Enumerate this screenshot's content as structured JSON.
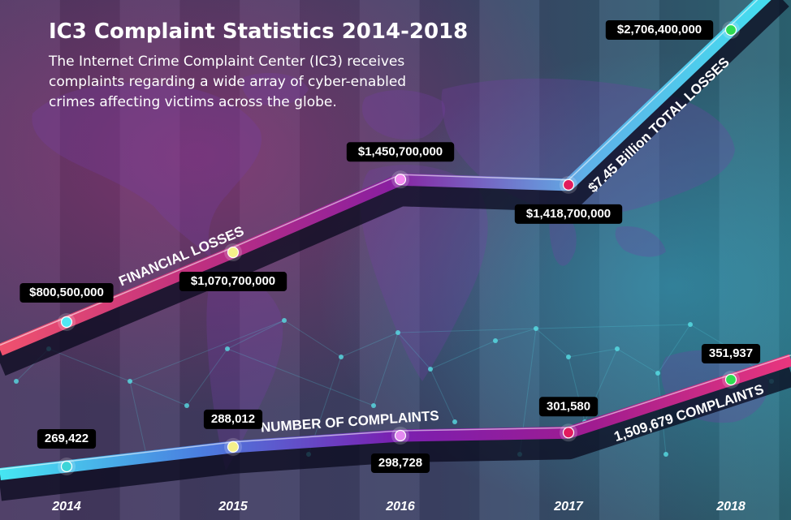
{
  "title": "IC3 Complaint Statistics 2014-2018",
  "subtitle": "The Internet Crime Complaint Center (IC3) receives complaints regarding a wide array of cyber-enabled crimes affecting victims across the globe.",
  "chart_data": {
    "type": "line",
    "categories": [
      "2014",
      "2015",
      "2016",
      "2017",
      "2018"
    ],
    "series": [
      {
        "name": "FINANCIAL LOSSES",
        "values": [
          800500000,
          1070700000,
          1450700000,
          1418700000,
          2706400000
        ],
        "labels": [
          "$800,500,000",
          "$1,070,700,000",
          "$1,450,700,000",
          "$1,418,700,000",
          "$2,706,400,000"
        ],
        "total": "$7.45 Billion TOTAL LOSSES",
        "gradient": [
          "#f0516e",
          "#c0307f",
          "#8a1fa0",
          "#5fb0e8",
          "#42e0ef"
        ],
        "dots": [
          "#4fe7f3",
          "#f4f08a",
          "#f48af0",
          "#e21c5e",
          "#2fdc52"
        ]
      },
      {
        "name": "NUMBER OF COMPLAINTS",
        "values": [
          269422,
          288012,
          298728,
          301580,
          351937
        ],
        "labels": [
          "269,422",
          "288,012",
          "298,728",
          "301,580",
          "351,937"
        ],
        "total": "1,509,679 COMPLAINTS",
        "gradient": [
          "#46e6f2",
          "#4a7fe0",
          "#7a1fb0",
          "#a01c90",
          "#e9367d"
        ],
        "dots": [
          "#3dd5d8",
          "#f4f08a",
          "#e48af0",
          "#e21c5e",
          "#2fdc52"
        ]
      }
    ],
    "colors": {
      "background": "#3a4a64",
      "band_light": "#4a5a72",
      "band_dark": "#3e4c66",
      "label_bg": "#000000",
      "text": "#ffffff"
    }
  }
}
